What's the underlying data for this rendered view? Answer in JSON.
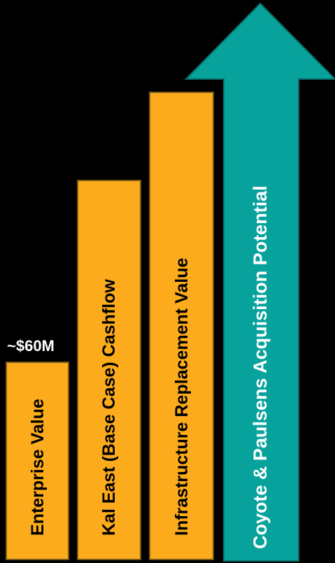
{
  "colors": {
    "background": "#000000",
    "bar_fill": "#fbab1b",
    "arrow_fill": "#08a29c",
    "label_dark": "#000000",
    "label_light": "#ffffff"
  },
  "value_label": "~$60M",
  "bars": [
    {
      "label": "Enterprise Value"
    },
    {
      "label": "Kal East (Base Case) Cashflow"
    },
    {
      "label": "Infrastructure Replacement Value"
    }
  ],
  "arrow": {
    "label": "Coyote & Paulsens Acquisition Potential"
  }
}
